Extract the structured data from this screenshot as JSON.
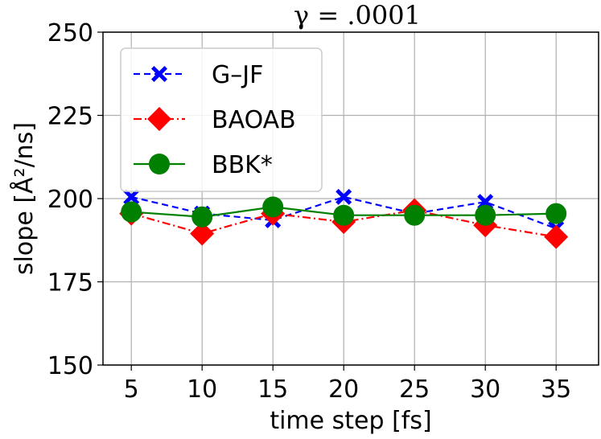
{
  "chart_data": {
    "type": "line",
    "title": "γ = .0001",
    "xlabel": "time step [fs]",
    "ylabel": "slope [Å²/ns]",
    "x": [
      5,
      10,
      15,
      20,
      25,
      30,
      35
    ],
    "xlim": [
      3,
      38
    ],
    "ylim": [
      150,
      250
    ],
    "xticks": [
      "5",
      "10",
      "15",
      "20",
      "25",
      "30",
      "35"
    ],
    "yticks": [
      "150",
      "175",
      "200",
      "225",
      "250"
    ],
    "grid": true,
    "legend_position": "top-left",
    "series": [
      {
        "name": "G–JF",
        "values": [
          200.5,
          195.5,
          193.5,
          200.5,
          195.5,
          199.0,
          191.0
        ],
        "color": "#0000ff",
        "marker": "x",
        "line": "dashed"
      },
      {
        "name": "BAOAB",
        "values": [
          195.5,
          189.5,
          195.5,
          193.0,
          196.5,
          192.0,
          188.5
        ],
        "color": "#ff0000",
        "marker": "diamond",
        "line": "dashdot"
      },
      {
        "name": "BBK*",
        "values": [
          196.0,
          194.5,
          197.5,
          195.0,
          195.0,
          195.0,
          195.5
        ],
        "color": "#008000",
        "marker": "circle",
        "line": "solid"
      }
    ]
  }
}
